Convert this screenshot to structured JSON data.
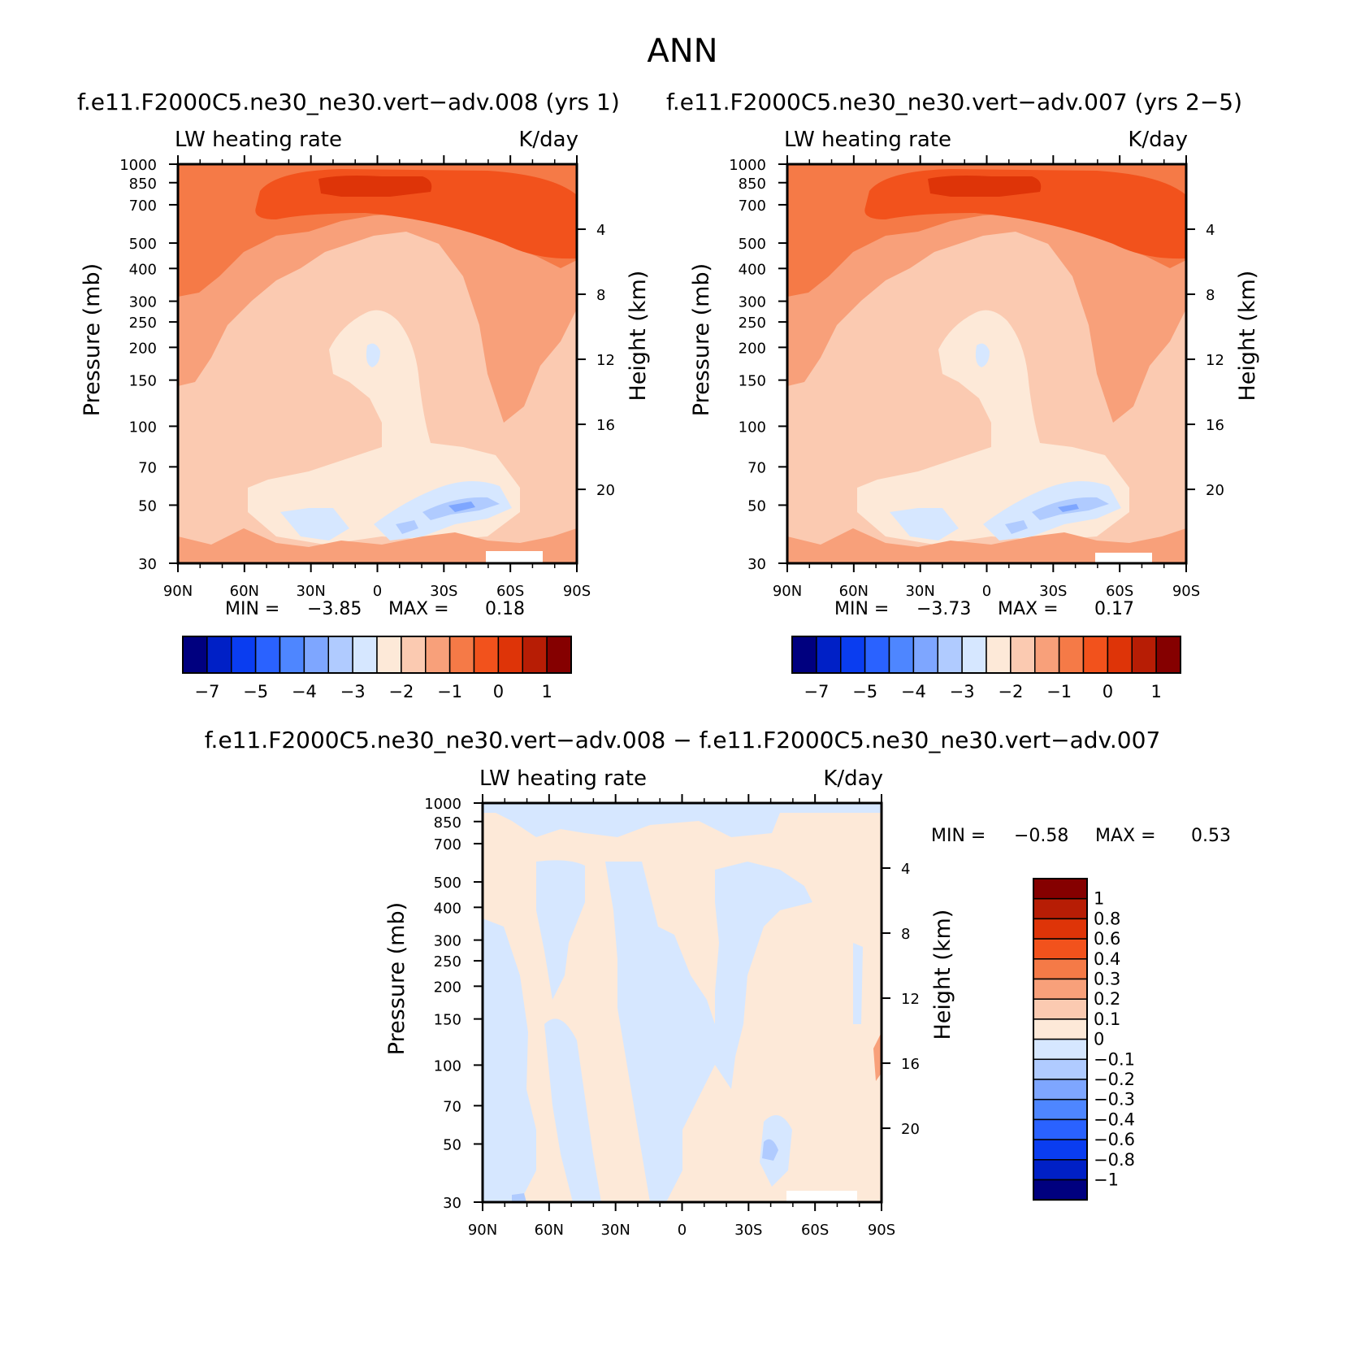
{
  "page": {
    "title": "ANN"
  },
  "chart_data": [
    {
      "id": "panel-008",
      "type": "heatmap",
      "title": "f.e11.F2000C5.ne30_ne30.vert−adv.008 (yrs 1)",
      "left_label": "LW heating rate",
      "right_label": "K/day",
      "xlabel": "",
      "ylabel": "Pressure (mb)",
      "ylabel_right": "Height (km)",
      "x_ticks": [
        "90N",
        "60N",
        "30N",
        "0",
        "30S",
        "60S",
        "90S"
      ],
      "y_ticks": [
        "30",
        "50",
        "70",
        "100",
        "150",
        "200",
        "250",
        "300",
        "400",
        "500",
        "700",
        "850",
        "1000"
      ],
      "y_ticks_right": [
        "20",
        "16",
        "12",
        "8",
        "4"
      ],
      "y_scale": "log",
      "ylim": [
        1000,
        30
      ],
      "min_label": "MIN =",
      "min": "−3.85",
      "max_label": "MAX =",
      "max": "0.18",
      "colorbar_ticks": [
        "−7",
        "−5",
        "−4",
        "−3",
        "−2",
        "−1",
        "0",
        "1"
      ],
      "colorbar_colors": [
        "#00007f",
        "#0020c6",
        "#0a3df0",
        "#2a62ff",
        "#4e86ff",
        "#7ea6ff",
        "#b0cbff",
        "#d6e7ff",
        "#fde9d8",
        "#fbcab1",
        "#f8a07a",
        "#f57a47",
        "#f2521c",
        "#de3408",
        "#b71d05",
        "#850000"
      ],
      "field": {
        "description_levels": "value in K/day shown by fill",
        "regions": [
          {
            "level": -1.0,
            "color": "#f57a47"
          },
          {
            "level": -0.5,
            "color": "#f2521c"
          },
          {
            "level": 0.0,
            "color": "#de3408"
          },
          {
            "level": -1.5,
            "color": "#f8a07a"
          },
          {
            "level": -2.0,
            "color": "#fbcab1"
          },
          {
            "level": -2.5,
            "color": "#fde9d8"
          },
          {
            "level": -3.0,
            "color": "#d6e7ff"
          },
          {
            "level": -3.5,
            "color": "#b0cbff"
          },
          {
            "level": -3.85,
            "color": "#7ea6ff"
          }
        ]
      }
    },
    {
      "id": "panel-007",
      "type": "heatmap",
      "title": "f.e11.F2000C5.ne30_ne30.vert−adv.007 (yrs 2−5)",
      "left_label": "LW heating rate",
      "right_label": "K/day",
      "xlabel": "",
      "ylabel": "Pressure (mb)",
      "ylabel_right": "Height (km)",
      "x_ticks": [
        "90N",
        "60N",
        "30N",
        "0",
        "30S",
        "60S",
        "90S"
      ],
      "y_ticks": [
        "30",
        "50",
        "70",
        "100",
        "150",
        "200",
        "250",
        "300",
        "400",
        "500",
        "700",
        "850",
        "1000"
      ],
      "y_ticks_right": [
        "20",
        "16",
        "12",
        "8",
        "4"
      ],
      "y_scale": "log",
      "ylim": [
        1000,
        30
      ],
      "min_label": "MIN =",
      "min": "−3.73",
      "max_label": "MAX =",
      "max": "0.17",
      "colorbar_ticks": [
        "−7",
        "−5",
        "−4",
        "−3",
        "−2",
        "−1",
        "0",
        "1"
      ],
      "colorbar_colors": [
        "#00007f",
        "#0020c6",
        "#0a3df0",
        "#2a62ff",
        "#4e86ff",
        "#7ea6ff",
        "#b0cbff",
        "#d6e7ff",
        "#fde9d8",
        "#fbcab1",
        "#f8a07a",
        "#f57a47",
        "#f2521c",
        "#de3408",
        "#b71d05",
        "#850000"
      ]
    },
    {
      "id": "panel-diff",
      "type": "heatmap",
      "title": "f.e11.F2000C5.ne30_ne30.vert−adv.008 − f.e11.F2000C5.ne30_ne30.vert−adv.007",
      "left_label": "LW heating rate",
      "right_label": "K/day",
      "xlabel": "",
      "ylabel": "Pressure (mb)",
      "ylabel_right": "Height (km)",
      "x_ticks": [
        "90N",
        "60N",
        "30N",
        "0",
        "30S",
        "60S",
        "90S"
      ],
      "y_ticks": [
        "30",
        "50",
        "70",
        "100",
        "150",
        "200",
        "250",
        "300",
        "400",
        "500",
        "700",
        "850",
        "1000"
      ],
      "y_ticks_right": [
        "20",
        "16",
        "12",
        "8",
        "4"
      ],
      "y_scale": "log",
      "ylim": [
        1000,
        30
      ],
      "min_label": "MIN =",
      "min": "−0.58",
      "max_label": "MAX =",
      "max": "0.53",
      "colorbar_ticks": [
        "1",
        "0.8",
        "0.6",
        "0.4",
        "0.3",
        "0.2",
        "0.1",
        "0",
        "−0.1",
        "−0.2",
        "−0.3",
        "−0.4",
        "−0.6",
        "−0.8",
        "−1"
      ],
      "colorbar_colors": [
        "#850000",
        "#b71d05",
        "#de3408",
        "#f2521c",
        "#f57a47",
        "#f8a07a",
        "#fbcab1",
        "#fde9d8",
        "#d6e7ff",
        "#b0cbff",
        "#7ea6ff",
        "#4e86ff",
        "#2a62ff",
        "#0a3df0",
        "#0020c6",
        "#00007f"
      ]
    }
  ]
}
